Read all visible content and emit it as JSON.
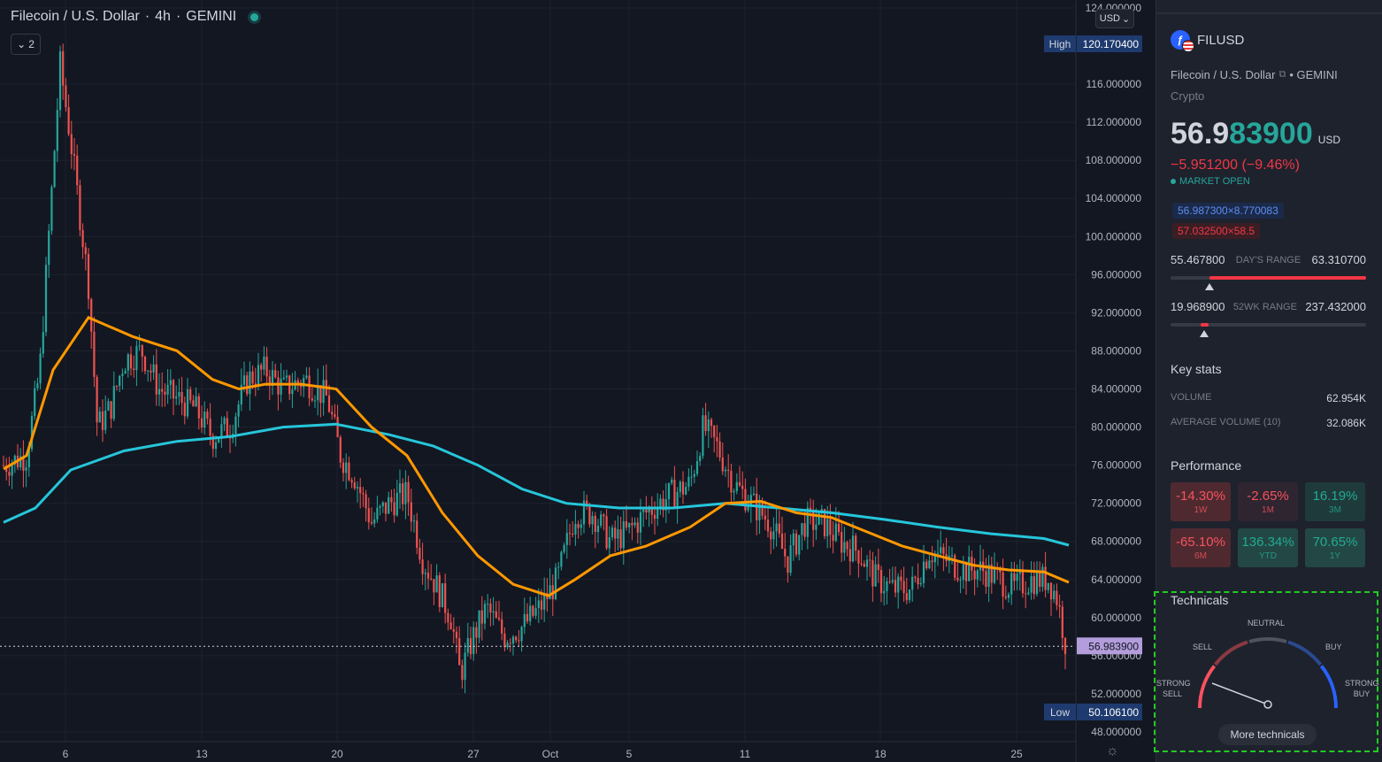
{
  "header": {
    "symbol_description": "Filecoin / U.S. Dollar",
    "interval": "4h",
    "exchange": "GEMINI",
    "status_color": "#26a69a",
    "indicator_count": "2"
  },
  "currency_selector": "USD",
  "chart": {
    "colors": {
      "up": "#26a69a",
      "down": "#ef5350",
      "ma_fast": "#ff9800",
      "ma_slow": "#26c6da",
      "grid": "#1e222d",
      "last_price_label": "#b39ddb"
    },
    "y_axis_ticks": [
      "124.000000",
      "120.170400",
      "116.000000",
      "112.000000",
      "108.000000",
      "104.000000",
      "100.000000",
      "96.000000",
      "92.000000",
      "88.000000",
      "84.000000",
      "80.000000",
      "76.000000",
      "72.000000",
      "68.000000",
      "64.000000",
      "60.000000",
      "56.000000",
      "52.000000",
      "48.000000"
    ],
    "x_axis_ticks": [
      "6",
      "13",
      "20",
      "27",
      "Oct",
      "5",
      "11",
      "18",
      "25"
    ],
    "high_label": "High",
    "high_value": "120.170400",
    "low_label": "Low",
    "low_value": "50.106100",
    "last_price": "56.983900"
  },
  "panel": {
    "symbol": "FILUSD",
    "logo_glyph": "ƒ",
    "description": "Filecoin / U.S. Dollar",
    "exchange_suffix": "• GEMINI",
    "category": "Crypto",
    "price_main": "56.9",
    "price_tail": "83900",
    "price_currency": "USD",
    "change": "−5.951200 (−9.46%)",
    "market_status": "MARKET OPEN",
    "bid": "56.987300×8.770083",
    "ask": "57.032500×58.5",
    "days_range": {
      "low": "55.467800",
      "label": "DAY'S RANGE",
      "high": "63.310700",
      "position": 0.2
    },
    "wk52_range": {
      "low": "19.968900",
      "label": "52WK RANGE",
      "high": "237.432000",
      "position": 0.17
    },
    "key_stats_title": "Key stats",
    "stats": [
      {
        "key": "VOLUME",
        "value": "62.954K"
      },
      {
        "key": "AVERAGE VOLUME (10)",
        "value": "32.086K"
      }
    ],
    "performance_title": "Performance",
    "performance": [
      {
        "value": "-14.30%",
        "label": "1W"
      },
      {
        "value": "-2.65%",
        "label": "1M"
      },
      {
        "value": "16.19%",
        "label": "3M"
      },
      {
        "value": "-65.10%",
        "label": "6M"
      },
      {
        "value": "136.34%",
        "label": "YTD"
      },
      {
        "value": "70.65%",
        "label": "1Y"
      }
    ],
    "technicals": {
      "title": "Technicals",
      "labels": {
        "neutral": "NEUTRAL",
        "sell": "SELL",
        "buy": "BUY",
        "strong_sell": "STRONG SELL",
        "strong_buy": "STRONG BUY"
      },
      "button": "More technicals"
    }
  }
}
